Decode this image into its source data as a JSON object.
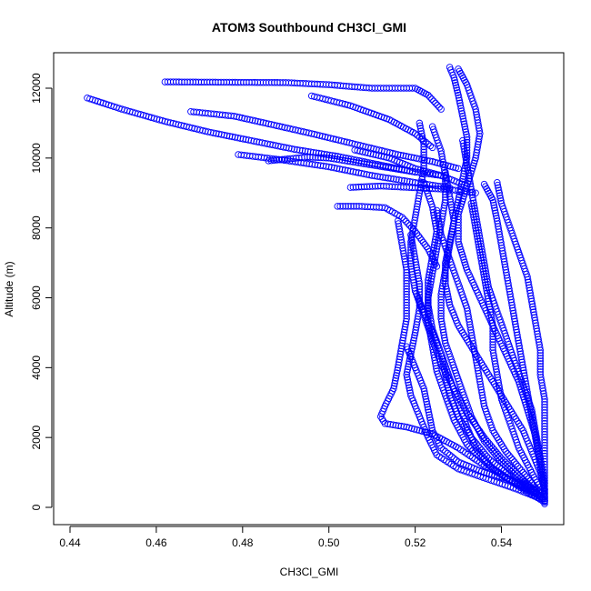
{
  "chart_data": {
    "type": "scatter",
    "title": "ATOM3 Southbound CH3Cl_GMI",
    "xlabel": "CH3Cl_GMI",
    "ylabel": "Altitude (m)",
    "xlim": [
      0.442,
      0.552
    ],
    "ylim": [
      0,
      12650
    ],
    "x_ticks": [
      0.44,
      0.46,
      0.48,
      0.5,
      0.52,
      0.54
    ],
    "x_tick_labels": [
      "0.44",
      "0.46",
      "0.48",
      "0.50",
      "0.52",
      "0.54"
    ],
    "y_ticks": [
      0,
      2000,
      4000,
      6000,
      8000,
      10000,
      12000
    ],
    "y_tick_labels": [
      "0",
      "2000",
      "4000",
      "6000",
      "8000",
      "10000",
      "12000"
    ],
    "grid": false,
    "marker": "open-circle",
    "color": "#0000ff",
    "series": [
      {
        "values": [
          [
            0.444,
            11720
          ],
          [
            0.452,
            11400
          ],
          [
            0.462,
            11050
          ],
          [
            0.472,
            10750
          ],
          [
            0.482,
            10500
          ],
          [
            0.492,
            10250
          ],
          [
            0.502,
            10050
          ],
          [
            0.512,
            9800
          ],
          [
            0.52,
            9600
          ],
          [
            0.526,
            9500
          ]
        ]
      },
      {
        "values": [
          [
            0.462,
            12180
          ],
          [
            0.475,
            12170
          ],
          [
            0.49,
            12160
          ],
          [
            0.5,
            12100
          ],
          [
            0.51,
            12000
          ],
          [
            0.52,
            12000
          ],
          [
            0.523,
            11800
          ],
          [
            0.526,
            11400
          ]
        ]
      },
      {
        "values": [
          [
            0.468,
            11330
          ],
          [
            0.478,
            11200
          ],
          [
            0.486,
            10980
          ],
          [
            0.496,
            10700
          ],
          [
            0.506,
            10400
          ],
          [
            0.516,
            10100
          ],
          [
            0.524,
            9900
          ],
          [
            0.53,
            9700
          ]
        ]
      },
      {
        "values": [
          [
            0.479,
            10100
          ],
          [
            0.489,
            9950
          ],
          [
            0.5,
            9750
          ],
          [
            0.51,
            9500
          ],
          [
            0.52,
            9300
          ],
          [
            0.528,
            9150
          ]
        ]
      },
      {
        "values": [
          [
            0.486,
            9920
          ],
          [
            0.495,
            10030
          ],
          [
            0.5,
            10000
          ],
          [
            0.51,
            9800
          ],
          [
            0.52,
            9600
          ]
        ]
      },
      {
        "values": [
          [
            0.496,
            11780
          ],
          [
            0.505,
            11500
          ],
          [
            0.514,
            11100
          ],
          [
            0.52,
            10700
          ],
          [
            0.524,
            10300
          ]
        ]
      },
      {
        "values": [
          [
            0.502,
            8620
          ],
          [
            0.507,
            8620
          ],
          [
            0.513,
            8580
          ],
          [
            0.517,
            8300
          ],
          [
            0.52,
            7900
          ],
          [
            0.523,
            7400
          ],
          [
            0.525,
            6900
          ]
        ]
      },
      {
        "values": [
          [
            0.505,
            9160
          ],
          [
            0.512,
            9200
          ],
          [
            0.52,
            9150
          ],
          [
            0.528,
            9100
          ],
          [
            0.534,
            9000
          ]
        ]
      },
      {
        "values": [
          [
            0.506,
            10230
          ],
          [
            0.514,
            10000
          ],
          [
            0.52,
            9700
          ],
          [
            0.526,
            9500
          ],
          [
            0.532,
            9200
          ]
        ]
      },
      {
        "values": [
          [
            0.528,
            12600
          ],
          [
            0.529,
            12300
          ],
          [
            0.53,
            11800
          ],
          [
            0.531,
            11200
          ],
          [
            0.532,
            10600
          ],
          [
            0.532,
            10000
          ],
          [
            0.531,
            9400
          ],
          [
            0.53,
            8800
          ],
          [
            0.529,
            8200
          ],
          [
            0.528,
            7600
          ],
          [
            0.527,
            7000
          ],
          [
            0.527,
            6400
          ],
          [
            0.528,
            5800
          ],
          [
            0.53,
            5200
          ],
          [
            0.533,
            4600
          ],
          [
            0.536,
            4000
          ],
          [
            0.539,
            3400
          ],
          [
            0.542,
            2800
          ],
          [
            0.545,
            2200
          ],
          [
            0.547,
            1600
          ],
          [
            0.549,
            1000
          ],
          [
            0.55,
            500
          ],
          [
            0.55,
            100
          ]
        ]
      },
      {
        "values": [
          [
            0.53,
            12550
          ],
          [
            0.532,
            12100
          ],
          [
            0.534,
            11400
          ],
          [
            0.535,
            10700
          ],
          [
            0.534,
            10000
          ],
          [
            0.532,
            9200
          ],
          [
            0.53,
            8400
          ],
          [
            0.53,
            7600
          ],
          [
            0.532,
            6800
          ],
          [
            0.535,
            6000
          ],
          [
            0.538,
            5200
          ],
          [
            0.541,
            4400
          ],
          [
            0.544,
            3600
          ],
          [
            0.546,
            2800
          ],
          [
            0.548,
            2000
          ],
          [
            0.549,
            1200
          ],
          [
            0.55,
            400
          ]
        ]
      },
      {
        "values": [
          [
            0.521,
            11000
          ],
          [
            0.522,
            10400
          ],
          [
            0.522,
            9700
          ],
          [
            0.521,
            9000
          ],
          [
            0.52,
            8300
          ],
          [
            0.519,
            7600
          ],
          [
            0.519,
            6900
          ],
          [
            0.52,
            6200
          ],
          [
            0.522,
            5500
          ],
          [
            0.524,
            4800
          ],
          [
            0.526,
            4100
          ],
          [
            0.529,
            3400
          ],
          [
            0.532,
            2700
          ],
          [
            0.536,
            2000
          ],
          [
            0.54,
            1400
          ],
          [
            0.545,
            800
          ],
          [
            0.55,
            200
          ]
        ]
      },
      {
        "values": [
          [
            0.524,
            10900
          ],
          [
            0.526,
            10200
          ],
          [
            0.527,
            9500
          ],
          [
            0.527,
            8800
          ],
          [
            0.526,
            8100
          ],
          [
            0.525,
            7400
          ],
          [
            0.524,
            6700
          ],
          [
            0.523,
            6000
          ],
          [
            0.523,
            5300
          ],
          [
            0.524,
            4600
          ],
          [
            0.525,
            3900
          ],
          [
            0.527,
            3200
          ],
          [
            0.529,
            2500
          ],
          [
            0.532,
            1800
          ],
          [
            0.537,
            1200
          ],
          [
            0.543,
            700
          ],
          [
            0.549,
            300
          ]
        ]
      },
      {
        "values": [
          [
            0.536,
            9250
          ],
          [
            0.538,
            8800
          ],
          [
            0.539,
            8200
          ],
          [
            0.54,
            7500
          ],
          [
            0.541,
            6800
          ],
          [
            0.542,
            6100
          ],
          [
            0.543,
            5400
          ],
          [
            0.544,
            4700
          ],
          [
            0.545,
            4000
          ],
          [
            0.546,
            3300
          ],
          [
            0.547,
            2600
          ],
          [
            0.548,
            1900
          ],
          [
            0.549,
            1200
          ],
          [
            0.55,
            500
          ]
        ]
      },
      {
        "values": [
          [
            0.539,
            9300
          ],
          [
            0.54,
            8700
          ],
          [
            0.542,
            8000
          ],
          [
            0.544,
            7300
          ],
          [
            0.546,
            6600
          ],
          [
            0.547,
            5900
          ],
          [
            0.548,
            5200
          ],
          [
            0.549,
            4500
          ],
          [
            0.549,
            3800
          ],
          [
            0.55,
            3100
          ],
          [
            0.55,
            2400
          ],
          [
            0.55,
            1700
          ],
          [
            0.55,
            1000
          ],
          [
            0.55,
            300
          ]
        ]
      },
      {
        "values": [
          [
            0.516,
            8200
          ],
          [
            0.517,
            7500
          ],
          [
            0.518,
            6800
          ],
          [
            0.518,
            6100
          ],
          [
            0.518,
            5400
          ],
          [
            0.517,
            4700
          ],
          [
            0.516,
            4000
          ],
          [
            0.515,
            3400
          ],
          [
            0.513,
            2900
          ],
          [
            0.512,
            2600
          ],
          [
            0.513,
            2400
          ],
          [
            0.518,
            2300
          ],
          [
            0.524,
            2100
          ],
          [
            0.53,
            1700
          ],
          [
            0.536,
            1200
          ],
          [
            0.542,
            800
          ],
          [
            0.548,
            400
          ]
        ]
      },
      {
        "values": [
          [
            0.519,
            7800
          ],
          [
            0.52,
            7100
          ],
          [
            0.521,
            6400
          ],
          [
            0.521,
            5700
          ],
          [
            0.52,
            5000
          ],
          [
            0.519,
            4400
          ],
          [
            0.518,
            3800
          ],
          [
            0.519,
            3200
          ],
          [
            0.521,
            2600
          ],
          [
            0.523,
            2000
          ],
          [
            0.525,
            1500
          ],
          [
            0.53,
            1100
          ],
          [
            0.537,
            800
          ],
          [
            0.544,
            500
          ],
          [
            0.55,
            200
          ]
        ]
      },
      {
        "values": [
          [
            0.525,
            8500
          ],
          [
            0.526,
            7800
          ],
          [
            0.528,
            7100
          ],
          [
            0.53,
            6400
          ],
          [
            0.532,
            5700
          ],
          [
            0.533,
            5000
          ],
          [
            0.534,
            4300
          ],
          [
            0.535,
            3600
          ],
          [
            0.536,
            2900
          ],
          [
            0.538,
            2200
          ],
          [
            0.541,
            1600
          ],
          [
            0.545,
            1000
          ],
          [
            0.549,
            400
          ]
        ]
      },
      {
        "values": [
          [
            0.533,
            8700
          ],
          [
            0.534,
            8000
          ],
          [
            0.535,
            7300
          ],
          [
            0.536,
            6600
          ],
          [
            0.537,
            5900
          ],
          [
            0.538,
            5200
          ],
          [
            0.538,
            4500
          ],
          [
            0.539,
            3800
          ],
          [
            0.54,
            3100
          ],
          [
            0.542,
            2400
          ],
          [
            0.544,
            1700
          ],
          [
            0.547,
            1000
          ],
          [
            0.55,
            300
          ]
        ]
      },
      {
        "values": [
          [
            0.527,
            9600
          ],
          [
            0.528,
            8900
          ],
          [
            0.529,
            8200
          ],
          [
            0.528,
            7500
          ],
          [
            0.527,
            6800
          ],
          [
            0.526,
            6100
          ],
          [
            0.526,
            5400
          ],
          [
            0.527,
            4700
          ],
          [
            0.529,
            4000
          ],
          [
            0.531,
            3300
          ],
          [
            0.533,
            2600
          ],
          [
            0.536,
            1900
          ],
          [
            0.54,
            1300
          ],
          [
            0.545,
            700
          ],
          [
            0.55,
            250
          ]
        ]
      },
      {
        "values": [
          [
            0.522,
            9300
          ],
          [
            0.524,
            8600
          ],
          [
            0.525,
            7900
          ],
          [
            0.524,
            7200
          ],
          [
            0.523,
            6500
          ],
          [
            0.523,
            5800
          ],
          [
            0.524,
            5100
          ],
          [
            0.526,
            4400
          ],
          [
            0.528,
            3700
          ],
          [
            0.53,
            3000
          ],
          [
            0.532,
            2300
          ],
          [
            0.534,
            1700
          ],
          [
            0.538,
            1100
          ],
          [
            0.544,
            600
          ],
          [
            0.55,
            150
          ]
        ]
      },
      {
        "values": [
          [
            0.531,
            10500
          ],
          [
            0.532,
            9800
          ],
          [
            0.533,
            9100
          ],
          [
            0.534,
            8400
          ],
          [
            0.535,
            7700
          ],
          [
            0.536,
            7000
          ],
          [
            0.537,
            6300
          ],
          [
            0.539,
            5600
          ],
          [
            0.541,
            4900
          ],
          [
            0.543,
            4200
          ],
          [
            0.545,
            3500
          ],
          [
            0.547,
            2800
          ],
          [
            0.548,
            2100
          ],
          [
            0.549,
            1400
          ],
          [
            0.55,
            700
          ]
        ]
      },
      {
        "values": [
          [
            0.52,
            6200
          ],
          [
            0.522,
            5600
          ],
          [
            0.524,
            5000
          ],
          [
            0.526,
            4400
          ],
          [
            0.527,
            3800
          ],
          [
            0.528,
            3200
          ],
          [
            0.53,
            2600
          ],
          [
            0.533,
            2000
          ],
          [
            0.537,
            1400
          ],
          [
            0.542,
            900
          ],
          [
            0.547,
            500
          ]
        ]
      },
      {
        "values": [
          [
            0.518,
            4600
          ],
          [
            0.52,
            4000
          ],
          [
            0.522,
            3400
          ],
          [
            0.523,
            2800
          ],
          [
            0.524,
            2200
          ],
          [
            0.526,
            1700
          ],
          [
            0.53,
            1300
          ],
          [
            0.536,
            1000
          ],
          [
            0.542,
            800
          ],
          [
            0.548,
            500
          ]
        ]
      }
    ]
  }
}
